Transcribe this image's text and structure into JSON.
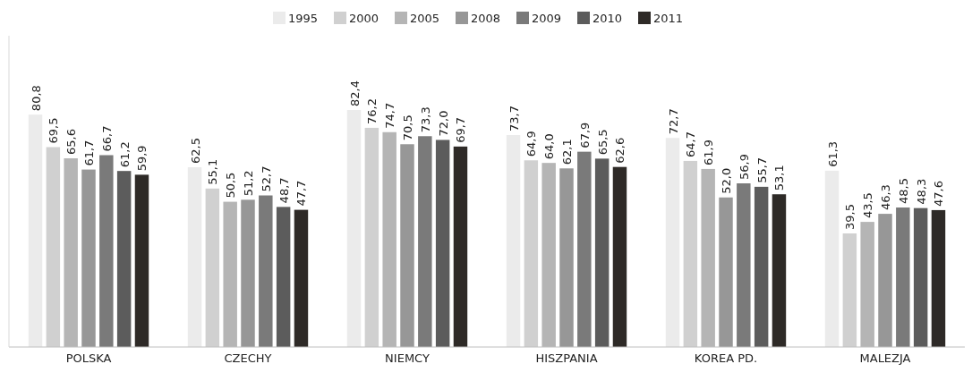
{
  "chart_data": {
    "type": "bar",
    "categories": [
      "POLSKA",
      "CZECHY",
      "NIEMCY",
      "HISZPANIA",
      "KOREA PD.",
      "MALEZJA"
    ],
    "series": [
      {
        "name": "1995",
        "color": "#ebebeb",
        "values": [
          80.8,
          62.5,
          82.4,
          73.7,
          72.7,
          61.3
        ],
        "value_labels": [
          "80,8",
          "62,5",
          "82,4",
          "73,7",
          "72,7",
          "61,3"
        ]
      },
      {
        "name": "2000",
        "color": "#d0d0d0",
        "values": [
          69.5,
          55.1,
          76.2,
          64.9,
          64.7,
          39.5
        ],
        "value_labels": [
          "69,5",
          "55,1",
          "76,2",
          "64,9",
          "64,7",
          "39,5"
        ]
      },
      {
        "name": "2005",
        "color": "#b5b5b5",
        "values": [
          65.6,
          50.5,
          74.7,
          64.0,
          61.9,
          43.5
        ],
        "value_labels": [
          "65,6",
          "50,5",
          "74,7",
          "64,0",
          "61,9",
          "43,5"
        ]
      },
      {
        "name": "2008",
        "color": "#979797",
        "values": [
          61.7,
          51.2,
          70.5,
          62.1,
          52.0,
          46.3
        ],
        "value_labels": [
          "61,7",
          "51,2",
          "70,5",
          "62,1",
          "52,0",
          "46,3"
        ]
      },
      {
        "name": "2009",
        "color": "#7a7a7a",
        "values": [
          66.7,
          52.7,
          73.3,
          67.9,
          56.9,
          48.5
        ],
        "value_labels": [
          "66,7",
          "52,7",
          "73,3",
          "67,9",
          "56,9",
          "48,5"
        ]
      },
      {
        "name": "2010",
        "color": "#5c5c5c",
        "values": [
          61.2,
          48.7,
          72.0,
          65.5,
          55.7,
          48.3
        ],
        "value_labels": [
          "61,2",
          "48,7",
          "72,0",
          "65,5",
          "55,7",
          "48,3"
        ]
      },
      {
        "name": "2011",
        "color": "#2e2a27",
        "values": [
          59.9,
          47.7,
          69.7,
          62.6,
          53.1,
          47.6
        ],
        "value_labels": [
          "59,9",
          "47,7",
          "69,7",
          "62,6",
          "53,1",
          "47,6"
        ]
      }
    ],
    "legend": "top"
  }
}
